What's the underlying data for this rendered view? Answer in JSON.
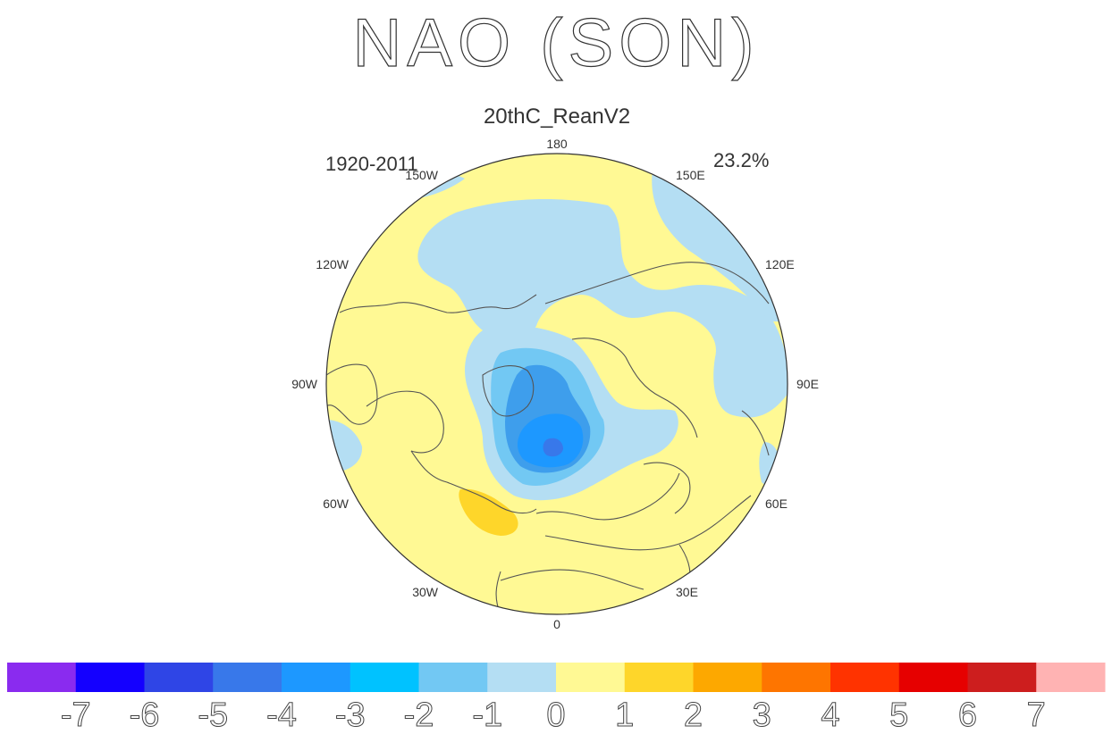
{
  "title": "NAO (SON)",
  "subtitle": "20thC_ReanV2",
  "period": "1920-2011",
  "variance_explained": "23.2%",
  "longitude_labels": [
    "180",
    "150E",
    "120E",
    "90E",
    "60E",
    "30E",
    "0",
    "30W",
    "60W",
    "90W",
    "120W",
    "150W"
  ],
  "colorbar": {
    "tick_labels": [
      "-7",
      "-6",
      "-5",
      "-4",
      "-3",
      "-2",
      "-1",
      "0",
      "1",
      "2",
      "3",
      "4",
      "5",
      "6",
      "7"
    ],
    "colors": [
      "#8a2bef",
      "#1400ff",
      "#2f45e6",
      "#3878ea",
      "#1d98ff",
      "#00c2ff",
      "#72c8f3",
      "#b4def3",
      "#fff994",
      "#fed62a",
      "#fda800",
      "#fe7500",
      "#ff3300",
      "#e60000",
      "#cd1e1e",
      "#ffb3b3"
    ]
  }
}
